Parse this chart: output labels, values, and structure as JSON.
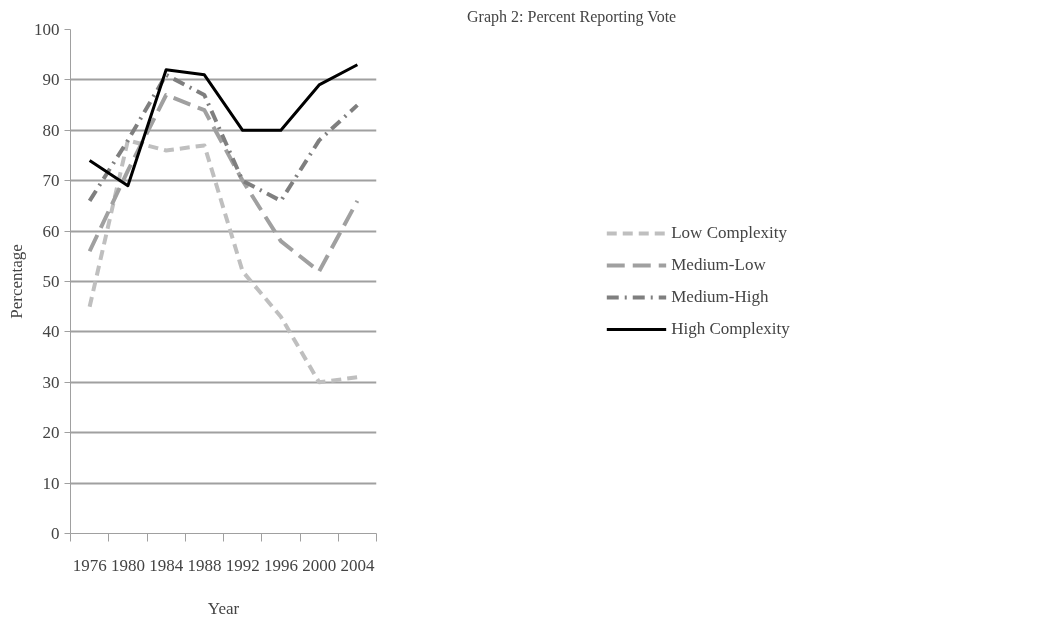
{
  "chart_data": {
    "type": "line",
    "title": "Graph 2: Percent Reporting Vote",
    "xlabel": "Year",
    "ylabel": "Percentage",
    "categories": [
      "1976",
      "1980",
      "1984",
      "1988",
      "1992",
      "1996",
      "2000",
      "2004"
    ],
    "series": [
      {
        "name": "Low Complexity",
        "color": "#bfbfbf",
        "line_style": "dashed",
        "values": [
          45,
          78,
          76,
          77,
          52,
          43,
          30,
          31
        ]
      },
      {
        "name": "Medium-Low",
        "color": "#a0a0a0",
        "line_style": "longdash",
        "values": [
          56,
          72,
          87,
          84,
          70,
          58,
          52,
          66
        ]
      },
      {
        "name": "Medium-High",
        "color": "#7f7f7f",
        "line_style": "dashdot",
        "values": [
          66,
          78,
          91,
          87,
          70,
          66,
          78,
          85
        ]
      },
      {
        "name": "High Complexity",
        "color": "#000000",
        "line_style": "solid",
        "values": [
          74,
          69,
          92,
          91,
          80,
          80,
          89,
          93
        ]
      }
    ],
    "ylim": [
      0,
      100
    ],
    "yticks": [
      0,
      10,
      20,
      30,
      40,
      50,
      60,
      70,
      80,
      90,
      100
    ],
    "grid": "y",
    "legend": "right",
    "marker": "none"
  }
}
